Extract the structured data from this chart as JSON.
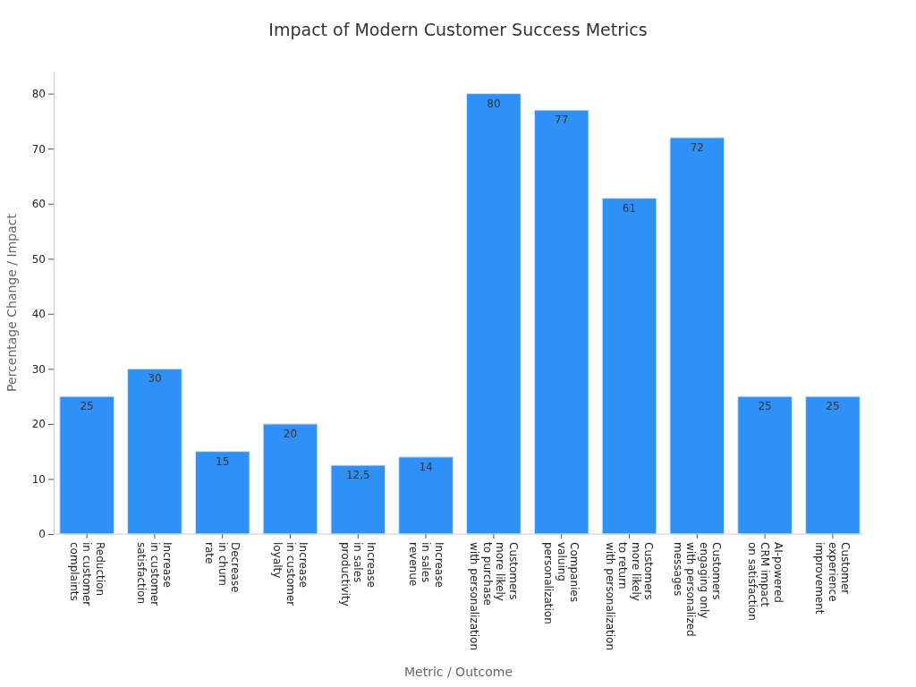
{
  "chart_data": {
    "type": "bar",
    "title": "Impact of Modern Customer Success Metrics",
    "xlabel": "Metric / Outcome",
    "ylabel": "Percentage Change / Impact",
    "categories": [
      "Reduction\nin customer\ncomplaints",
      "Increase\nin customer\nsatisfaction",
      "Decrease\nin churn\nrate",
      "Increase\nin customer\nloyalty",
      "Increase\nin sales\nproductivity",
      "Increase\nin sales\nrevenue",
      "Customers\nmore likely\nto purchase\nwith personalization",
      "Companies\nvaluing\npersonalization",
      "Customers\nmore likely\nto return\nwith personalization",
      "Customers\nengaging only\nwith personalized\nmessages",
      "AI-powered\nCRM impact\non satisfaction",
      "Customer\nexperience\nimprovement"
    ],
    "values": [
      25,
      30,
      15,
      20,
      12.5,
      14,
      80,
      77,
      61,
      72,
      25,
      25
    ],
    "color": "#2f91f8",
    "ylim": [
      0,
      84
    ],
    "yticks": [
      0,
      10,
      20,
      30,
      40,
      50,
      60,
      70,
      80
    ],
    "grid": false,
    "value_labels": [
      "25",
      "30",
      "15",
      "20",
      "12,5",
      "14",
      "80",
      "77",
      "61",
      "72",
      "25",
      "25"
    ]
  }
}
